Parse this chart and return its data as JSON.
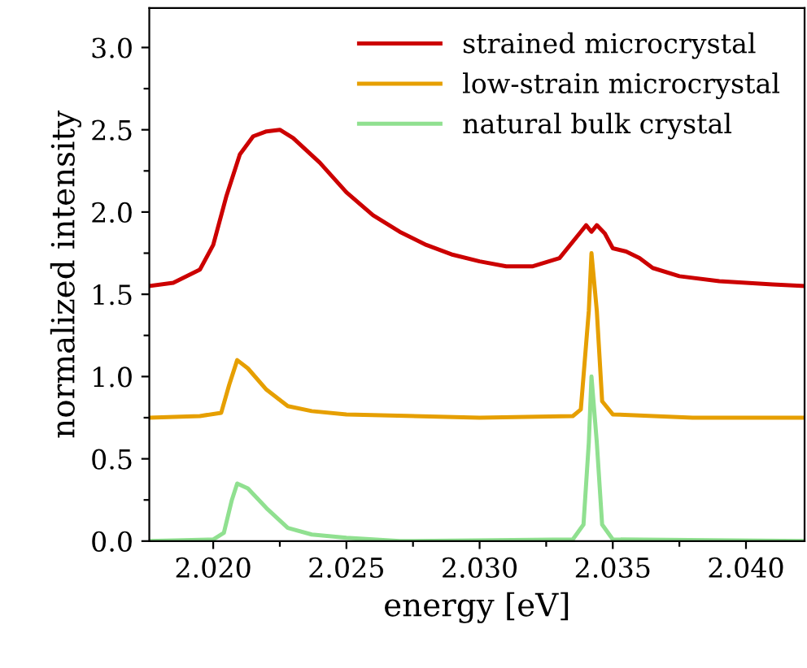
{
  "chart_data": {
    "type": "line",
    "xlabel": "energy [eV]",
    "ylabel": "normalized intensity",
    "xlim": [
      2.0176,
      2.0422
    ],
    "ylim": [
      0,
      3.24
    ],
    "xticks": [
      {
        "value": 2.02,
        "label": "2.020"
      },
      {
        "value": 2.0225,
        "label": null
      },
      {
        "value": 2.025,
        "label": "2.025"
      },
      {
        "value": 2.0275,
        "label": null
      },
      {
        "value": 2.03,
        "label": "2.030"
      },
      {
        "value": 2.0325,
        "label": null
      },
      {
        "value": 2.035,
        "label": "2.035"
      },
      {
        "value": 2.0375,
        "label": null
      },
      {
        "value": 2.04,
        "label": "2.040"
      }
    ],
    "yticks": [
      {
        "value": 0,
        "label": "0.0"
      },
      {
        "value": 0.25,
        "label": null
      },
      {
        "value": 0.5,
        "label": "0.5"
      },
      {
        "value": 0.75,
        "label": null
      },
      {
        "value": 1,
        "label": "1.0"
      },
      {
        "value": 1.25,
        "label": null
      },
      {
        "value": 1.5,
        "label": "1.5"
      },
      {
        "value": 1.75,
        "label": null
      },
      {
        "value": 2,
        "label": "2.0"
      },
      {
        "value": 2.25,
        "label": null
      },
      {
        "value": 2.5,
        "label": "2.5"
      },
      {
        "value": 2.75,
        "label": null
      },
      {
        "value": 3,
        "label": "3.0"
      }
    ],
    "legend": "top right",
    "grid": false,
    "marker": "none",
    "line_style": "solid",
    "series": [
      {
        "name": "strained microcrystal",
        "color": "#cc0000",
        "x": [
          2.0176,
          2.0185,
          2.0195,
          2.02,
          2.0205,
          2.021,
          2.0215,
          2.022,
          2.0225,
          2.023,
          2.024,
          2.025,
          2.026,
          2.027,
          2.028,
          2.029,
          2.03,
          2.031,
          2.032,
          2.033,
          2.0338,
          2.034,
          2.0342,
          2.0344,
          2.0347,
          2.035,
          2.0355,
          2.036,
          2.0365,
          2.0375,
          2.039,
          2.041,
          2.0422
        ],
        "values": [
          1.55,
          1.57,
          1.65,
          1.8,
          2.1,
          2.35,
          2.46,
          2.49,
          2.5,
          2.45,
          2.3,
          2.12,
          1.98,
          1.88,
          1.8,
          1.74,
          1.7,
          1.67,
          1.67,
          1.72,
          1.88,
          1.92,
          1.88,
          1.92,
          1.87,
          1.78,
          1.76,
          1.72,
          1.66,
          1.61,
          1.58,
          1.56,
          1.55
        ]
      },
      {
        "name": "low-strain microcrystal",
        "color": "#e69f00",
        "x": [
          2.0176,
          2.0195,
          2.0203,
          2.0206,
          2.0209,
          2.0213,
          2.022,
          2.0228,
          2.0237,
          2.025,
          2.03,
          2.0335,
          2.0338,
          2.0341,
          2.0342,
          2.0344,
          2.0346,
          2.035,
          2.038,
          2.0422
        ],
        "values": [
          0.75,
          0.76,
          0.78,
          0.95,
          1.1,
          1.05,
          0.92,
          0.82,
          0.79,
          0.77,
          0.75,
          0.76,
          0.8,
          1.4,
          1.75,
          1.4,
          0.85,
          0.77,
          0.75,
          0.75
        ]
      },
      {
        "name": "natural bulk crystal",
        "color": "#90e090",
        "x": [
          2.0176,
          2.02,
          2.0204,
          2.0207,
          2.0209,
          2.0213,
          2.022,
          2.0228,
          2.0237,
          2.025,
          2.027,
          2.0335,
          2.0339,
          2.0341,
          2.0342,
          2.0344,
          2.0346,
          2.035,
          2.0422
        ],
        "values": [
          0.0,
          0.01,
          0.05,
          0.25,
          0.35,
          0.32,
          0.2,
          0.08,
          0.04,
          0.02,
          0.0,
          0.01,
          0.1,
          0.6,
          1.0,
          0.6,
          0.1,
          0.01,
          0.0
        ]
      }
    ]
  }
}
